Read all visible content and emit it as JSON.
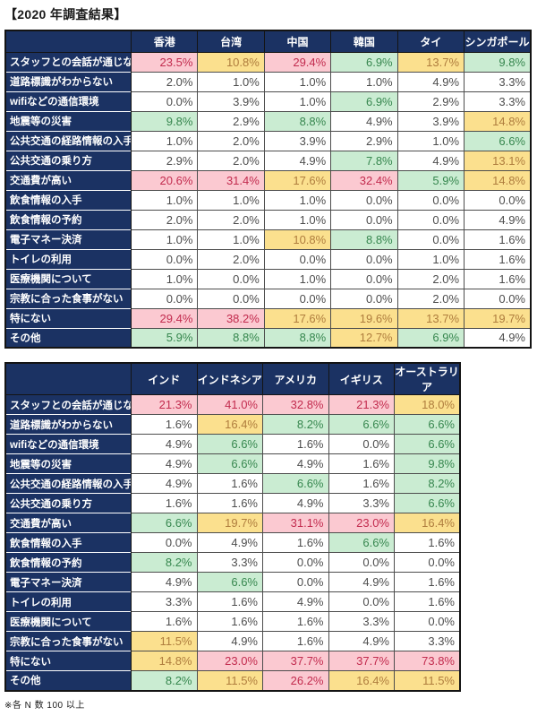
{
  "title": "【2020 年調査結果】",
  "footnote": "※各 N 数 100 以上",
  "colors": {
    "header_bg": "#1b3263",
    "header_text": "#ffffff",
    "plain_bg": "#ffffff",
    "plain_text": "#4d4d4d",
    "pink_bg": "#fbc9d1",
    "pink_text": "#c22b4e",
    "yellow_bg": "#fbe08e",
    "yellow_text": "#af7d3e",
    "green_bg": "#caecd2",
    "green_text": "#37874f"
  },
  "color_scale": {
    "pink_min": 20,
    "yellow_min": 10,
    "green_min": 5,
    "note": "cell shading by value: >=20% pink, >=10% yellow, >=5% green, else white"
  },
  "chart_data": [
    {
      "type": "heatmap",
      "unit": "%",
      "columns": [
        "香港",
        "台湾",
        "中国",
        "韓国",
        "タイ",
        "シンガポール"
      ],
      "rows": [
        "スタッフとの会話が通じない",
        "道路標識がわからない",
        "wifiなどの通信環境",
        "地震等の災害",
        "公共交通の経路情報の入手",
        "公共交通の乗り方",
        "交通費が高い",
        "飲食情報の入手",
        "飲食情報の予約",
        "電子マネー決済",
        "トイレの利用",
        "医療機関について",
        "宗教に合った食事がない",
        "特にない",
        "その他"
      ],
      "values": [
        [
          23.5,
          10.8,
          29.4,
          6.9,
          13.7,
          9.8
        ],
        [
          2.0,
          1.0,
          1.0,
          1.0,
          4.9,
          3.3
        ],
        [
          0.0,
          3.9,
          1.0,
          6.9,
          2.9,
          3.3
        ],
        [
          9.8,
          2.9,
          8.8,
          4.9,
          3.9,
          14.8
        ],
        [
          1.0,
          2.0,
          3.9,
          2.9,
          1.0,
          6.6
        ],
        [
          2.9,
          2.0,
          4.9,
          7.8,
          4.9,
          13.1
        ],
        [
          20.6,
          31.4,
          17.6,
          32.4,
          5.9,
          14.8
        ],
        [
          1.0,
          1.0,
          1.0,
          0.0,
          0.0,
          0.0
        ],
        [
          2.0,
          2.0,
          1.0,
          0.0,
          0.0,
          4.9
        ],
        [
          1.0,
          1.0,
          10.8,
          8.8,
          0.0,
          1.6
        ],
        [
          0.0,
          2.0,
          0.0,
          0.0,
          1.0,
          1.6
        ],
        [
          1.0,
          0.0,
          1.0,
          0.0,
          2.0,
          1.6
        ],
        [
          0.0,
          0.0,
          0.0,
          0.0,
          2.0,
          0.0
        ],
        [
          29.4,
          38.2,
          17.6,
          19.6,
          13.7,
          19.7
        ],
        [
          5.9,
          8.8,
          8.8,
          12.7,
          6.9,
          4.9
        ]
      ]
    },
    {
      "type": "heatmap",
      "unit": "%",
      "columns": [
        "インド",
        "インドネシア",
        "アメリカ",
        "イギリス",
        "オーストラリア"
      ],
      "rows": [
        "スタッフとの会話が通じない",
        "道路標識がわからない",
        "wifiなどの通信環境",
        "地震等の災害",
        "公共交通の経路情報の入手",
        "公共交通の乗り方",
        "交通費が高い",
        "飲食情報の入手",
        "飲食情報の予約",
        "電子マネー決済",
        "トイレの利用",
        "医療機関について",
        "宗教に合った食事がない",
        "特にない",
        "その他"
      ],
      "values": [
        [
          21.3,
          41.0,
          32.8,
          21.3,
          18.0
        ],
        [
          1.6,
          16.4,
          8.2,
          6.6,
          6.6
        ],
        [
          4.9,
          6.6,
          1.6,
          0.0,
          6.6
        ],
        [
          4.9,
          6.6,
          4.9,
          1.6,
          9.8
        ],
        [
          4.9,
          1.6,
          6.6,
          1.6,
          8.2
        ],
        [
          1.6,
          1.6,
          4.9,
          3.3,
          6.6
        ],
        [
          6.6,
          19.7,
          31.1,
          23.0,
          16.4
        ],
        [
          0.0,
          4.9,
          1.6,
          6.6,
          1.6
        ],
        [
          8.2,
          3.3,
          0.0,
          0.0,
          0.0
        ],
        [
          4.9,
          6.6,
          0.0,
          4.9,
          1.6
        ],
        [
          3.3,
          1.6,
          4.9,
          0.0,
          1.6
        ],
        [
          1.6,
          1.6,
          1.6,
          3.3,
          0.0
        ],
        [
          11.5,
          4.9,
          1.6,
          4.9,
          3.3
        ],
        [
          14.8,
          23.0,
          37.7,
          37.7,
          73.8
        ],
        [
          8.2,
          11.5,
          26.2,
          16.4,
          11.5
        ]
      ]
    }
  ]
}
